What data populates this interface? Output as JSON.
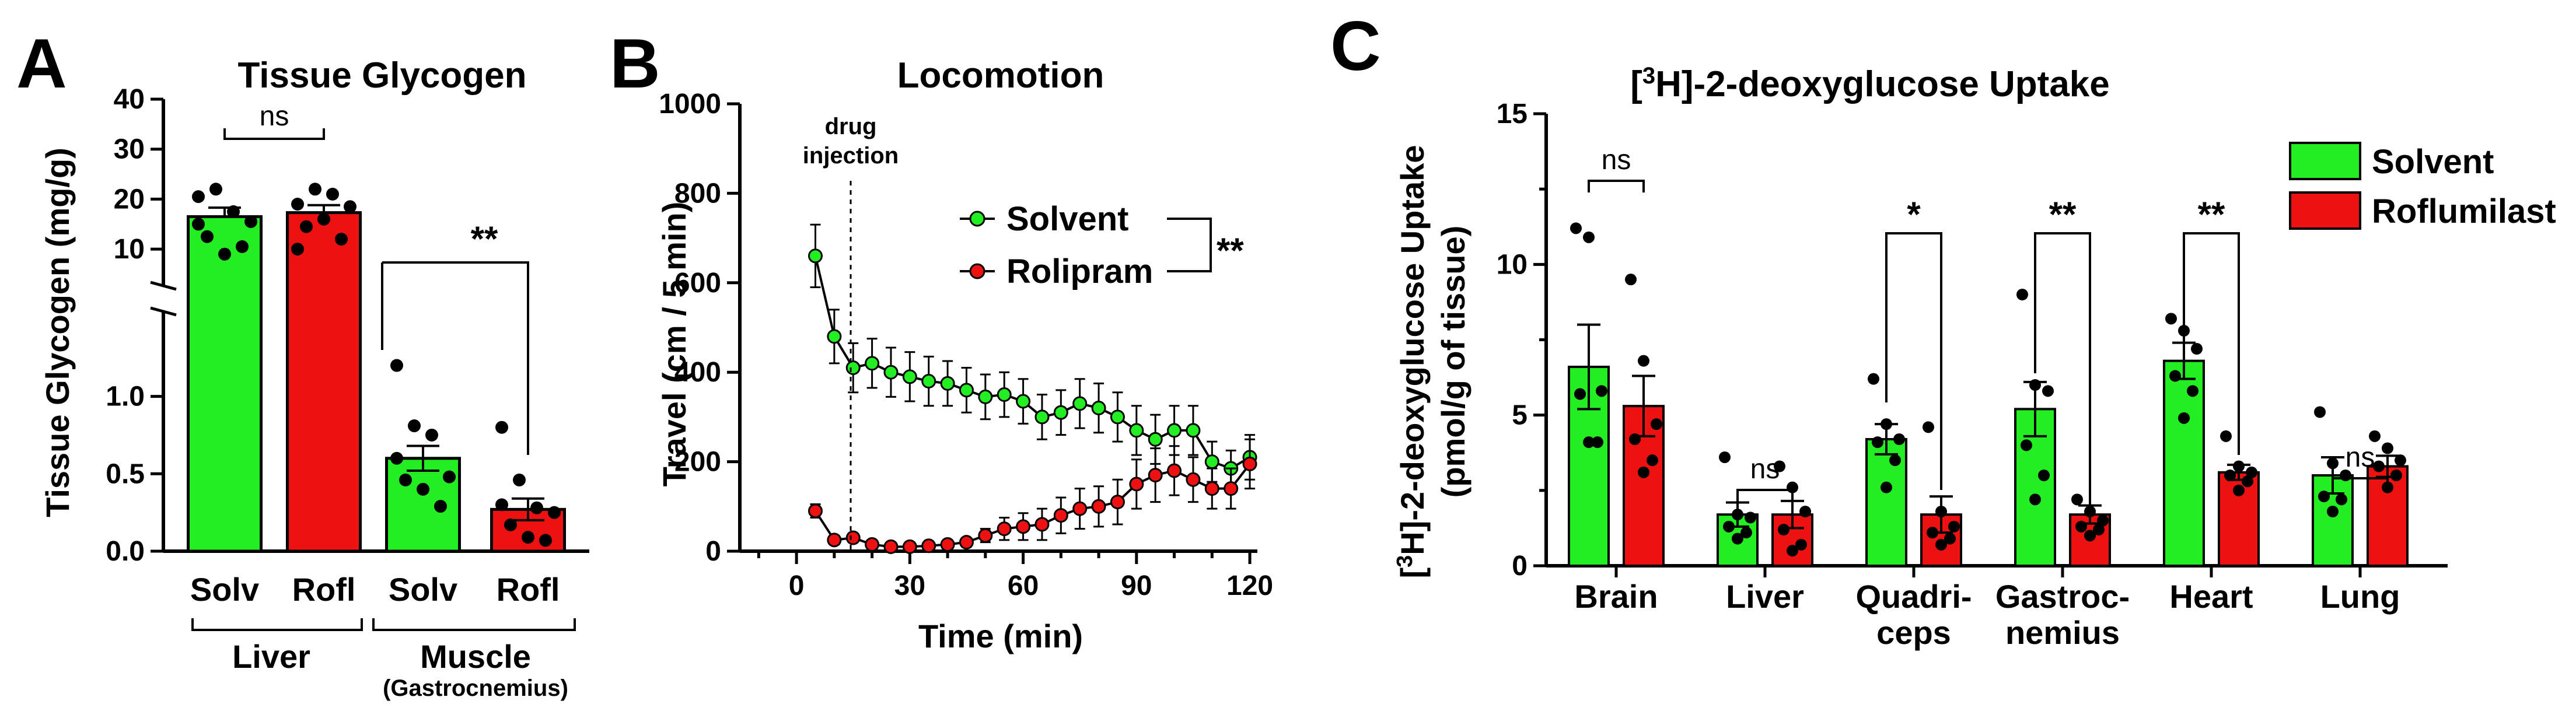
{
  "panels": [
    {
      "id": "A",
      "letter": "A",
      "title": "Tissue Glycogen"
    },
    {
      "id": "B",
      "letter": "B",
      "title": "Locomotion"
    },
    {
      "id": "C",
      "letter": "C",
      "title": "[3H]-2-deoxyglucose Uptake"
    }
  ],
  "colors": {
    "solvent": "#22ee22",
    "treatment": "#ee1111"
  },
  "chart_data": [
    {
      "type": "bar",
      "panel": "A",
      "title": "Tissue Glycogen",
      "ylabel": "Tissue Glycogen (mg/g)",
      "y_axis_break": true,
      "y_lower_range": [
        0,
        1.3
      ],
      "y_upper_range": [
        5,
        40
      ],
      "yticks_lower": [
        "0.0",
        "0.5",
        "1.0"
      ],
      "yticks_upper": [
        "10",
        "20",
        "30",
        "40"
      ],
      "categories": [
        "Solv",
        "Rofl",
        "Solv",
        "Rofl"
      ],
      "groups": [
        {
          "label": "Liver",
          "sublabel": "",
          "categories": [
            0,
            1
          ]
        },
        {
          "label": "Muscle",
          "sublabel": "(Gastrocnemius)",
          "categories": [
            2,
            3
          ]
        }
      ],
      "values": [
        16.5,
        17.3,
        0.6,
        0.27
      ],
      "sem": [
        1.8,
        1.5,
        0.08,
        0.07
      ],
      "points": [
        [
          20.5,
          22,
          17.5,
          15.5,
          12.5,
          9,
          10.5,
          15
        ],
        [
          19,
          22,
          21,
          18.5,
          14.5,
          16,
          12,
          10
        ],
        [
          1.2,
          0.81,
          0.75,
          0.48,
          0.46,
          0.4,
          0.29,
          0.6
        ],
        [
          0.8,
          0.46,
          0.28,
          0.25,
          0.17,
          0.09,
          0.07,
          0.3
        ]
      ],
      "significance": [
        {
          "text": "ns",
          "between": [
            0,
            1
          ]
        },
        {
          "text": "**",
          "between": [
            2,
            3
          ]
        }
      ]
    },
    {
      "type": "line",
      "panel": "B",
      "title": "Locomotion",
      "xlabel": "Time (min)",
      "ylabel": "Travel (cm / 5 min)",
      "xlim": [
        -15,
        122
      ],
      "ylim": [
        0,
        1000
      ],
      "xticks": [
        0,
        30,
        60,
        90,
        120
      ],
      "yticks": [
        0,
        200,
        400,
        600,
        800,
        1000
      ],
      "annotation": {
        "text_line1": "drug",
        "text_line2": "injection",
        "x": 0
      },
      "x": [
        5,
        10,
        15,
        20,
        25,
        30,
        35,
        40,
        45,
        50,
        55,
        60,
        65,
        70,
        75,
        80,
        85,
        90,
        95,
        100,
        105,
        110,
        115,
        120
      ],
      "series": [
        {
          "name": "Solvent",
          "color": "#22ee22",
          "values": [
            660,
            480,
            410,
            420,
            400,
            390,
            380,
            375,
            360,
            345,
            350,
            335,
            300,
            310,
            330,
            320,
            300,
            270,
            250,
            270,
            270,
            200,
            185,
            210
          ],
          "err": [
            70,
            60,
            55,
            55,
            55,
            55,
            55,
            50,
            50,
            50,
            50,
            50,
            50,
            50,
            55,
            55,
            55,
            55,
            55,
            55,
            55,
            45,
            40,
            50
          ]
        },
        {
          "name": "Rolipram",
          "color": "#ee1111",
          "values": [
            90,
            25,
            30,
            15,
            10,
            10,
            12,
            15,
            20,
            35,
            50,
            55,
            60,
            80,
            95,
            100,
            110,
            150,
            170,
            180,
            160,
            140,
            140,
            195
          ],
          "err": [
            15,
            10,
            10,
            8,
            6,
            6,
            6,
            8,
            10,
            15,
            25,
            30,
            35,
            40,
            45,
            45,
            50,
            55,
            60,
            55,
            50,
            45,
            45,
            55
          ]
        }
      ],
      "significance": "**"
    },
    {
      "type": "bar",
      "panel": "C",
      "title": "[3H]-2-deoxyglucose Uptake",
      "ylabel_line1": "[3H]-2-deoxyglucose Uptake",
      "ylabel_line2": "(pmol/g of tissue)",
      "ylim": [
        0,
        15
      ],
      "yticks": [
        0,
        5,
        10,
        15
      ],
      "categories": [
        [
          "Brain"
        ],
        [
          "Liver"
        ],
        [
          "Quadri-",
          "ceps"
        ],
        [
          "Gastroc-",
          "nemius"
        ],
        [
          "Heart"
        ],
        [
          "Lung"
        ]
      ],
      "series": [
        {
          "name": "Solvent",
          "color": "#22ee22",
          "values": [
            6.6,
            1.7,
            4.2,
            5.2,
            6.8,
            3.0
          ],
          "sem": [
            1.4,
            0.4,
            0.5,
            0.9,
            0.6,
            0.6
          ]
        },
        {
          "name": "Roflumilast",
          "color": "#ee1111",
          "values": [
            5.3,
            1.7,
            1.7,
            1.7,
            3.1,
            3.3
          ],
          "sem": [
            1.0,
            0.45,
            0.6,
            0.3,
            0.25,
            0.35
          ]
        }
      ],
      "points": [
        [
          [
            11.2,
            10.9,
            5.8,
            5.7,
            4.1,
            4.1
          ],
          [
            9.5,
            6.8,
            4.7,
            4.2,
            3.5,
            3.1
          ]
        ],
        [
          [
            3.6,
            1.7,
            1.6,
            1.3,
            1.1,
            0.9
          ],
          [
            3.3,
            2.6,
            1.8,
            1.2,
            0.7,
            0.5
          ]
        ],
        [
          [
            6.2,
            4.7,
            4.2,
            4.1,
            3.5,
            2.6
          ],
          [
            4.6,
            1.8,
            1.3,
            1.1,
            0.9,
            0.7
          ]
        ],
        [
          [
            9.0,
            6.0,
            5.8,
            4.0,
            3.0,
            2.2
          ],
          [
            2.2,
            1.8,
            1.5,
            1.3,
            1.2,
            1.0
          ]
        ],
        [
          [
            8.2,
            7.8,
            7.2,
            6.3,
            5.8,
            4.9
          ],
          [
            4.3,
            3.3,
            3.1,
            3.0,
            2.8,
            2.5
          ]
        ],
        [
          [
            5.1,
            3.4,
            3.0,
            2.3,
            2.2,
            1.8
          ],
          [
            4.3,
            3.9,
            3.5,
            3.3,
            3.0,
            2.6
          ]
        ]
      ],
      "significance": [
        "ns",
        "ns",
        "*",
        "**",
        "**",
        "ns"
      ],
      "legend": {
        "position": "top-right",
        "entries": [
          "Solvent",
          "Roflumilast"
        ]
      }
    }
  ]
}
